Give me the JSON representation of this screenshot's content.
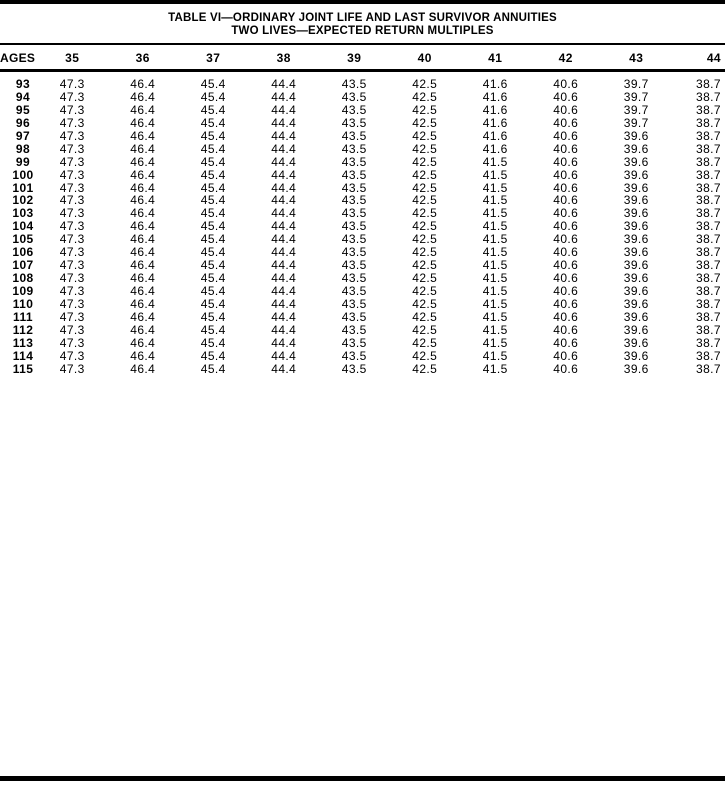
{
  "page": {
    "title_line1": "TABLE VI—ORDINARY JOINT LIFE AND LAST SURVIVOR ANNUITIES",
    "title_line2": "TWO LIVES—EXPECTED RETURN MULTIPLES"
  },
  "colors": {
    "ink": "#000000",
    "paper": "#ffffff"
  },
  "table": {
    "age_header": "AGES",
    "columns": [
      "35",
      "36",
      "37",
      "38",
      "39",
      "40",
      "41",
      "42",
      "43",
      "44"
    ],
    "rows": [
      {
        "age": "93",
        "values": [
          "47.3",
          "46.4",
          "45.4",
          "44.4",
          "43.5",
          "42.5",
          "41.6",
          "40.6",
          "39.7",
          "38.7"
        ]
      },
      {
        "age": "94",
        "values": [
          "47.3",
          "46.4",
          "45.4",
          "44.4",
          "43.5",
          "42.5",
          "41.6",
          "40.6",
          "39.7",
          "38.7"
        ]
      },
      {
        "age": "95",
        "values": [
          "47.3",
          "46.4",
          "45.4",
          "44.4",
          "43.5",
          "42.5",
          "41.6",
          "40.6",
          "39.7",
          "38.7"
        ]
      },
      {
        "age": "96",
        "values": [
          "47.3",
          "46.4",
          "45.4",
          "44.4",
          "43.5",
          "42.5",
          "41.6",
          "40.6",
          "39.7",
          "38.7"
        ]
      },
      {
        "age": "97",
        "values": [
          "47.3",
          "46.4",
          "45.4",
          "44.4",
          "43.5",
          "42.5",
          "41.6",
          "40.6",
          "39.6",
          "38.7"
        ]
      },
      {
        "age": "98",
        "values": [
          "47.3",
          "46.4",
          "45.4",
          "44.4",
          "43.5",
          "42.5",
          "41.6",
          "40.6",
          "39.6",
          "38.7"
        ]
      },
      {
        "age": "99",
        "values": [
          "47.3",
          "46.4",
          "45.4",
          "44.4",
          "43.5",
          "42.5",
          "41.5",
          "40.6",
          "39.6",
          "38.7"
        ]
      },
      {
        "age": "100",
        "values": [
          "47.3",
          "46.4",
          "45.4",
          "44.4",
          "43.5",
          "42.5",
          "41.5",
          "40.6",
          "39.6",
          "38.7"
        ]
      },
      {
        "age": "101",
        "values": [
          "47.3",
          "46.4",
          "45.4",
          "44.4",
          "43.5",
          "42.5",
          "41.5",
          "40.6",
          "39.6",
          "38.7"
        ]
      },
      {
        "age": "102",
        "values": [
          "47.3",
          "46.4",
          "45.4",
          "44.4",
          "43.5",
          "42.5",
          "41.5",
          "40.6",
          "39.6",
          "38.7"
        ]
      },
      {
        "age": "103",
        "values": [
          "47.3",
          "46.4",
          "45.4",
          "44.4",
          "43.5",
          "42.5",
          "41.5",
          "40.6",
          "39.6",
          "38.7"
        ]
      },
      {
        "age": "104",
        "values": [
          "47.3",
          "46.4",
          "45.4",
          "44.4",
          "43.5",
          "42.5",
          "41.5",
          "40.6",
          "39.6",
          "38.7"
        ]
      },
      {
        "age": "105",
        "values": [
          "47.3",
          "46.4",
          "45.4",
          "44.4",
          "43.5",
          "42.5",
          "41.5",
          "40.6",
          "39.6",
          "38.7"
        ]
      },
      {
        "age": "106",
        "values": [
          "47.3",
          "46.4",
          "45.4",
          "44.4",
          "43.5",
          "42.5",
          "41.5",
          "40.6",
          "39.6",
          "38.7"
        ]
      },
      {
        "age": "107",
        "values": [
          "47.3",
          "46.4",
          "45.4",
          "44.4",
          "43.5",
          "42.5",
          "41.5",
          "40.6",
          "39.6",
          "38.7"
        ]
      },
      {
        "age": "108",
        "values": [
          "47.3",
          "46.4",
          "45.4",
          "44.4",
          "43.5",
          "42.5",
          "41.5",
          "40.6",
          "39.6",
          "38.7"
        ]
      },
      {
        "age": "109",
        "values": [
          "47.3",
          "46.4",
          "45.4",
          "44.4",
          "43.5",
          "42.5",
          "41.5",
          "40.6",
          "39.6",
          "38.7"
        ]
      },
      {
        "age": "110",
        "values": [
          "47.3",
          "46.4",
          "45.4",
          "44.4",
          "43.5",
          "42.5",
          "41.5",
          "40.6",
          "39.6",
          "38.7"
        ]
      },
      {
        "age": "111",
        "values": [
          "47.3",
          "46.4",
          "45.4",
          "44.4",
          "43.5",
          "42.5",
          "41.5",
          "40.6",
          "39.6",
          "38.7"
        ]
      },
      {
        "age": "112",
        "values": [
          "47.3",
          "46.4",
          "45.4",
          "44.4",
          "43.5",
          "42.5",
          "41.5",
          "40.6",
          "39.6",
          "38.7"
        ]
      },
      {
        "age": "113",
        "values": [
          "47.3",
          "46.4",
          "45.4",
          "44.4",
          "43.5",
          "42.5",
          "41.5",
          "40.6",
          "39.6",
          "38.7"
        ]
      },
      {
        "age": "114",
        "values": [
          "47.3",
          "46.4",
          "45.4",
          "44.4",
          "43.5",
          "42.5",
          "41.5",
          "40.6",
          "39.6",
          "38.7"
        ]
      },
      {
        "age": "115",
        "values": [
          "47.3",
          "46.4",
          "45.4",
          "44.4",
          "43.5",
          "42.5",
          "41.5",
          "40.6",
          "39.6",
          "38.7"
        ]
      }
    ]
  }
}
